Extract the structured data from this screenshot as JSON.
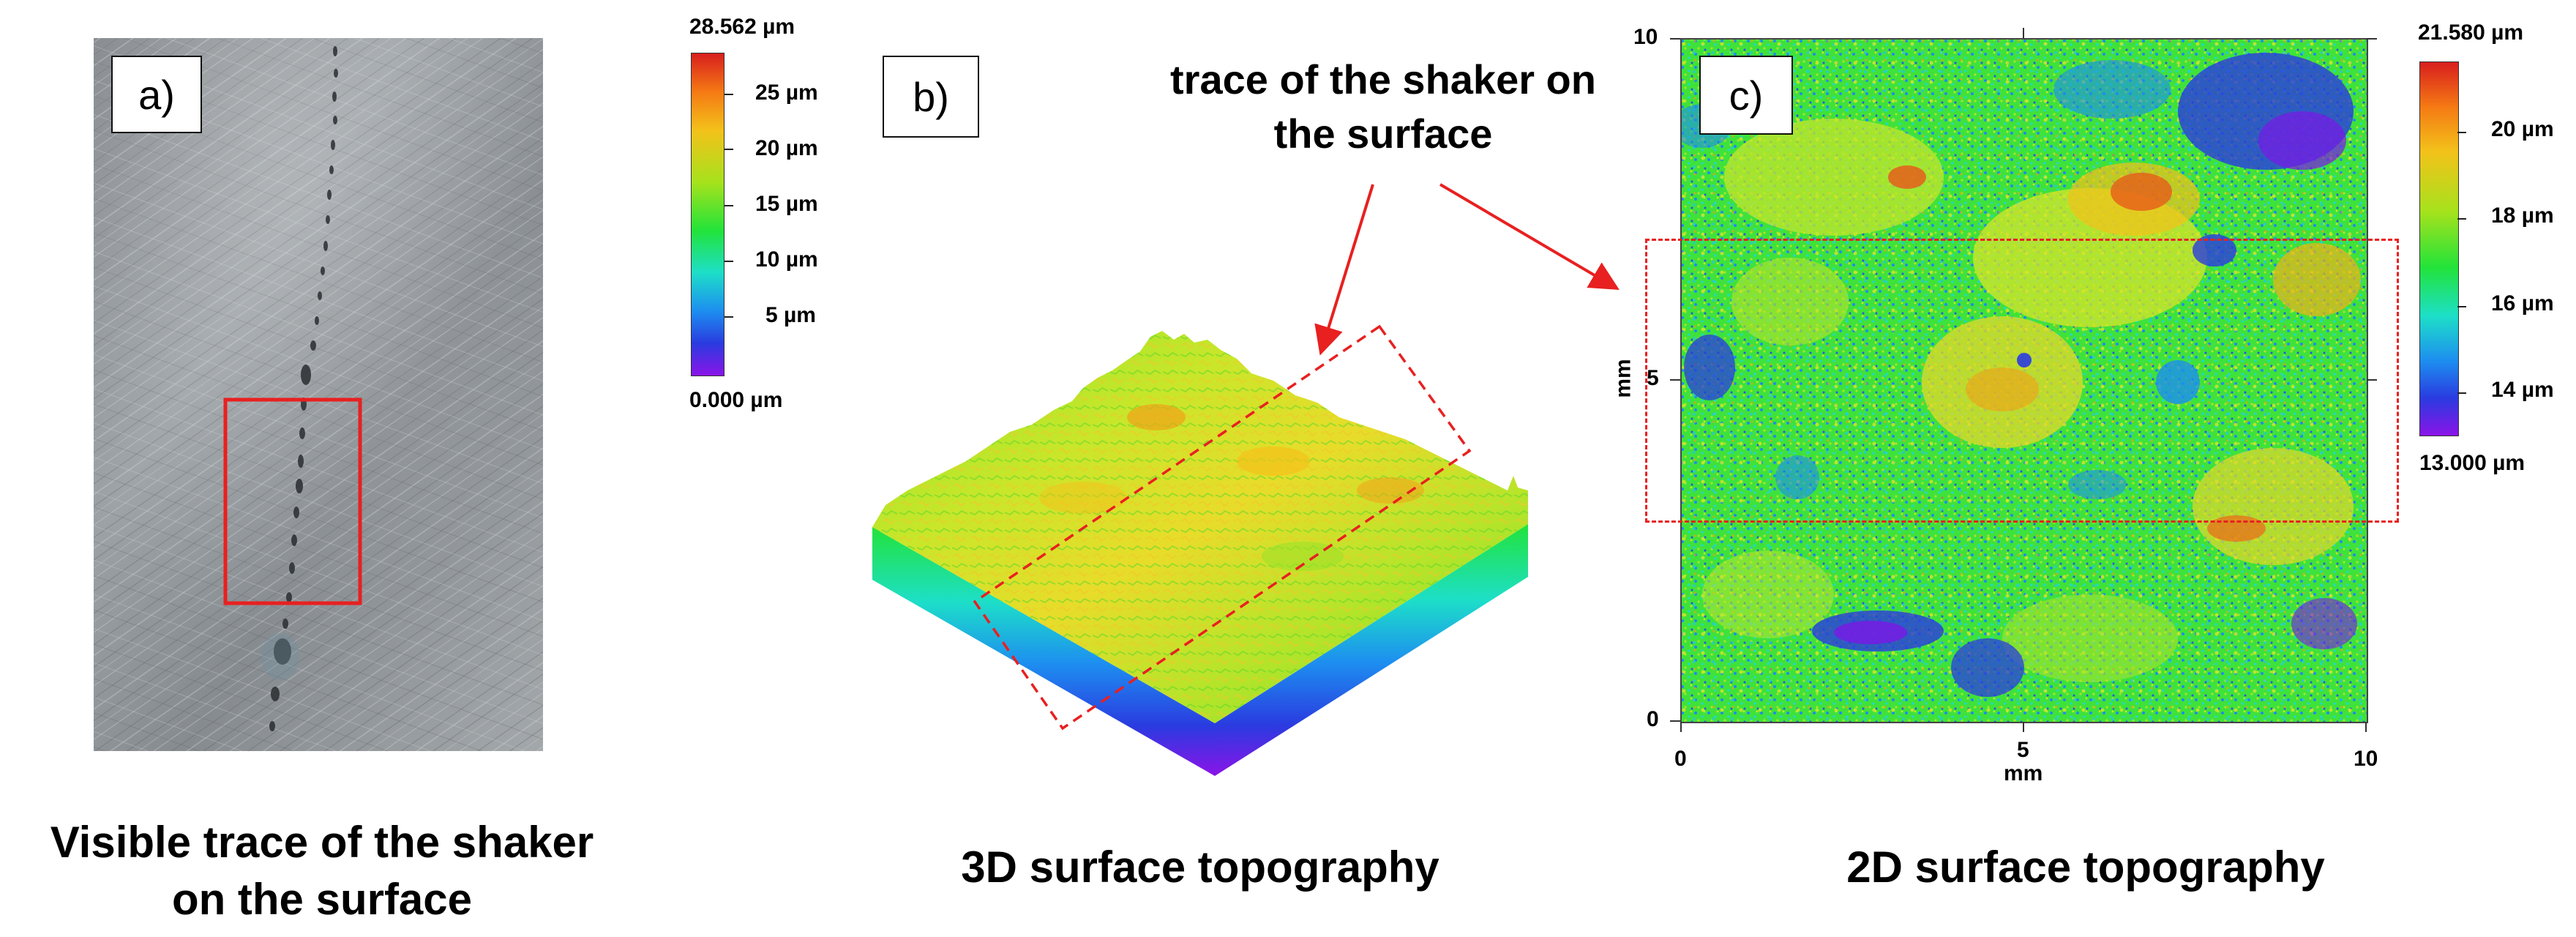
{
  "panels": [
    {
      "label": "a)",
      "caption_lines": [
        "Visible trace of the shaker",
        "on the surface"
      ]
    },
    {
      "label": "b)",
      "caption_lines": [
        "3D surface topography"
      ]
    },
    {
      "label": "c)",
      "caption_lines": [
        "2D surface topography"
      ]
    }
  ],
  "annotation": {
    "lines": [
      "trace of the shaker on",
      "the surface"
    ],
    "color": "#e82020"
  },
  "colorbar_3d": {
    "max_label": "28.562 µm",
    "min_label": "0.000 µm",
    "ticks": [
      "25 µm",
      "20 µm",
      "15 µm",
      "10 µm",
      "5 µm"
    ]
  },
  "colorbar_2d": {
    "max_label": "21.580 µm",
    "min_label": "13.000 µm",
    "ticks": [
      "20 µm",
      "18 µm",
      "16 µm",
      "14 µm"
    ]
  },
  "map_2d": {
    "x_ticks": [
      "0",
      "5",
      "10"
    ],
    "y_ticks": [
      "10",
      "5",
      "0"
    ],
    "x_unit": "mm",
    "y_unit": "mm"
  },
  "colors": {
    "highlight_red": "#e82020",
    "metal_bg": "#8a8f93"
  }
}
